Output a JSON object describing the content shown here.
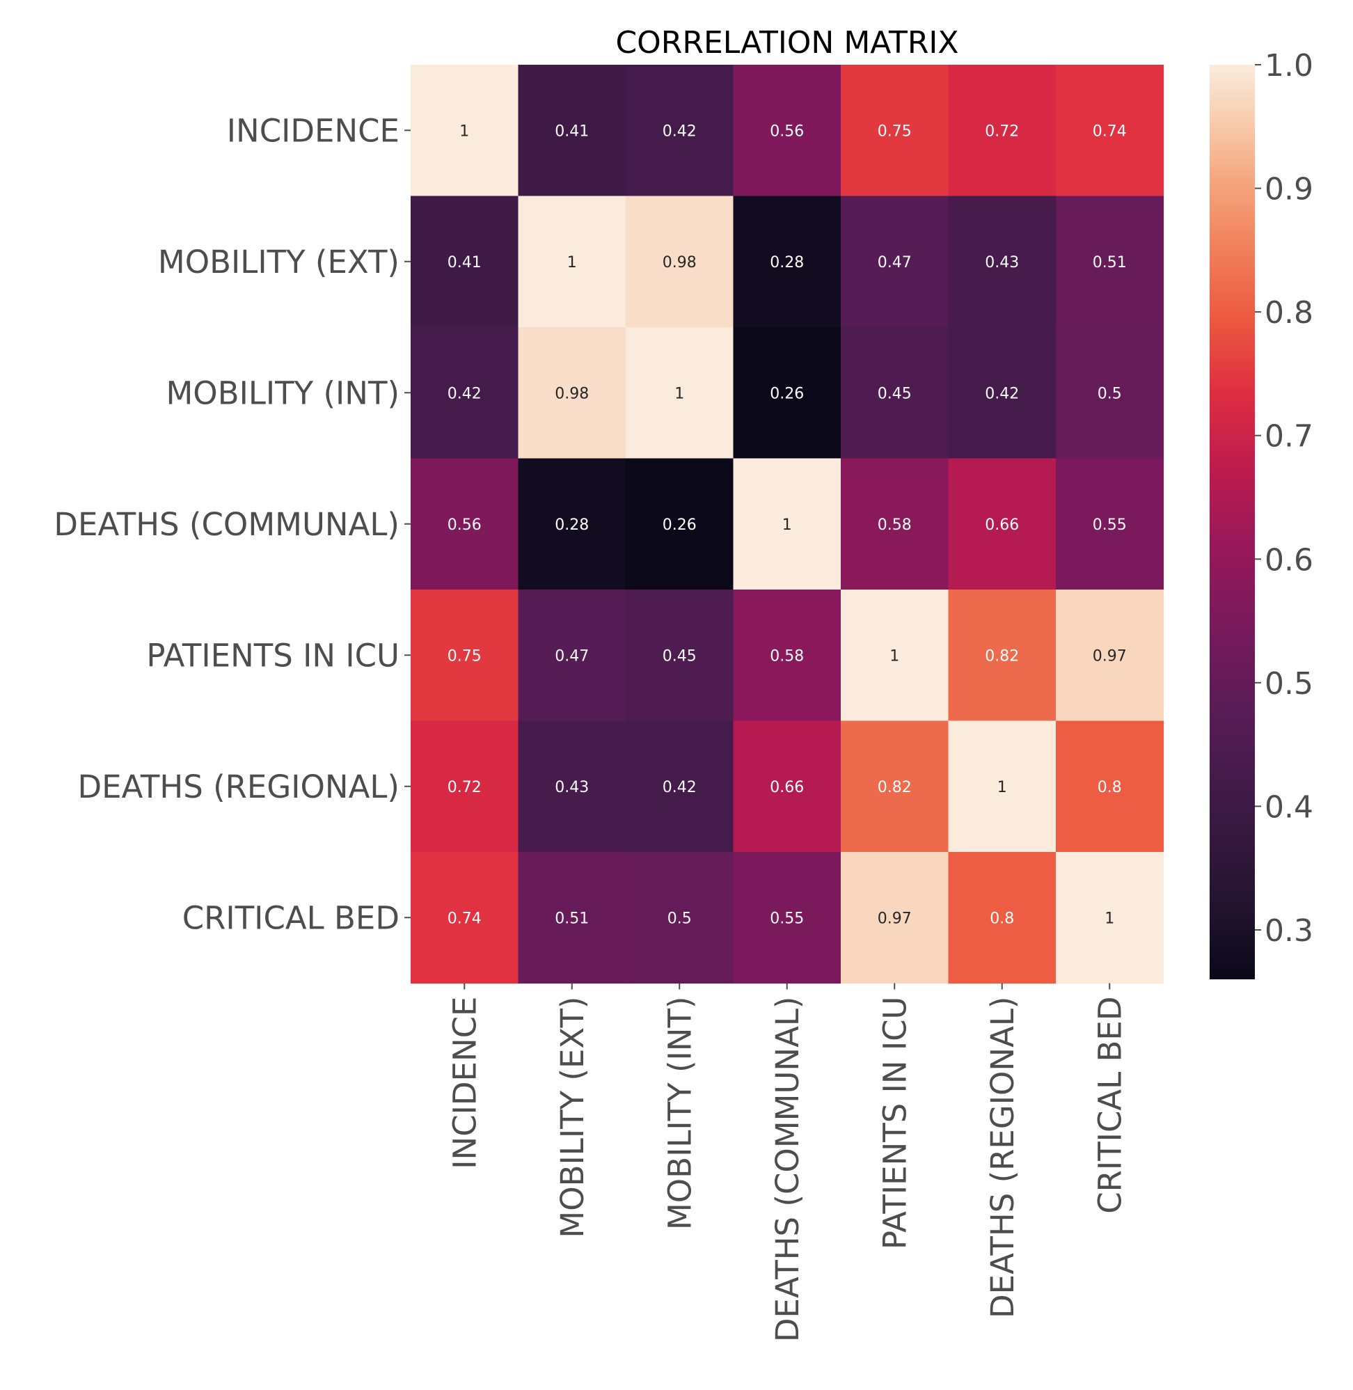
{
  "chart_data": {
    "type": "heatmap",
    "title": "CORRELATION MATRIX",
    "xlabel": "",
    "ylabel": "",
    "row_labels": [
      "INCIDENCE",
      "MOBILITY (EXT)",
      "MOBILITY (INT)",
      "DEATHS (COMMUNAL)",
      "PATIENTS IN ICU",
      "DEATHS (REGIONAL)",
      "CRITICAL BED"
    ],
    "col_labels": [
      "INCIDENCE",
      "MOBILITY (EXT)",
      "MOBILITY (INT)",
      "DEATHS (COMMUNAL)",
      "PATIENTS IN ICU",
      "DEATHS (REGIONAL)",
      "CRITICAL BED"
    ],
    "values": [
      [
        1,
        0.41,
        0.42,
        0.56,
        0.75,
        0.72,
        0.74
      ],
      [
        0.41,
        1,
        0.98,
        0.28,
        0.47,
        0.43,
        0.51
      ],
      [
        0.42,
        0.98,
        1,
        0.26,
        0.45,
        0.42,
        0.5
      ],
      [
        0.56,
        0.28,
        0.26,
        1,
        0.58,
        0.66,
        0.55
      ],
      [
        0.75,
        0.47,
        0.45,
        0.58,
        1,
        0.82,
        0.97
      ],
      [
        0.72,
        0.43,
        0.42,
        0.66,
        0.82,
        1,
        0.8
      ],
      [
        0.74,
        0.51,
        0.5,
        0.55,
        0.97,
        0.8,
        1
      ]
    ],
    "cell_text": [
      [
        "1",
        "0.41",
        "0.42",
        "0.56",
        "0.75",
        "0.72",
        "0.74"
      ],
      [
        "0.41",
        "1",
        "0.98",
        "0.28",
        "0.47",
        "0.43",
        "0.51"
      ],
      [
        "0.42",
        "0.98",
        "1",
        "0.26",
        "0.45",
        "0.42",
        "0.5"
      ],
      [
        "0.56",
        "0.28",
        "0.26",
        "1",
        "0.58",
        "0.66",
        "0.55"
      ],
      [
        "0.75",
        "0.47",
        "0.45",
        "0.58",
        "1",
        "0.82",
        "0.97"
      ],
      [
        "0.72",
        "0.43",
        "0.42",
        "0.66",
        "0.82",
        "1",
        "0.8"
      ],
      [
        "0.74",
        "0.51",
        "0.5",
        "0.55",
        "0.97",
        "0.8",
        "1"
      ]
    ],
    "colorbar": {
      "colormap": "rocket",
      "range": [
        0.26,
        1.0
      ],
      "ticks": [
        0.3,
        0.4,
        0.5,
        0.6,
        0.7,
        0.8,
        0.9,
        1.0
      ],
      "tick_labels": [
        "0.3",
        "0.4",
        "0.5",
        "0.6",
        "0.7",
        "0.8",
        "0.9",
        "1.0"
      ]
    },
    "grid": false,
    "legend": "none"
  }
}
